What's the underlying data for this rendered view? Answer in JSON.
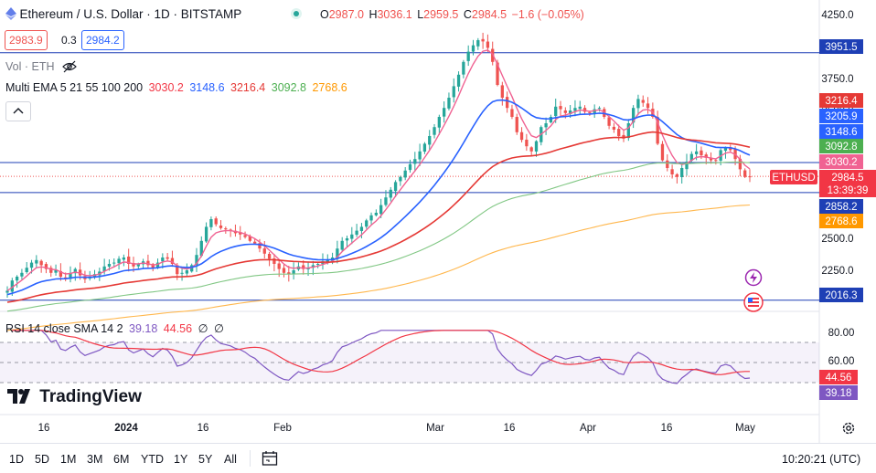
{
  "header": {
    "coin_icon": "ethereum-icon",
    "title": "Ethereum / U.S. Dollar · 1D · BITSTAMP",
    "status_dot_color": "#26a69a",
    "ohlc": {
      "o_label": "O",
      "o": "2987.0",
      "h_label": "H",
      "h": "3036.1",
      "l_label": "L",
      "l": "2959.5",
      "c_label": "C",
      "c": "2984.5",
      "change": "−1.6 (−0.05%)"
    }
  },
  "trade": {
    "sell": "2983.9",
    "spread": "0.3",
    "buy": "2984.2"
  },
  "volume": {
    "label": "Vol · ETH",
    "icon": "eye-off-icon"
  },
  "ema": {
    "label": "Multi EMA 5 21 55 100 200",
    "values": [
      "3030.2",
      "3148.6",
      "3216.4",
      "3092.8",
      "2768.6"
    ],
    "colors": [
      "#f23645",
      "#2962ff",
      "#e53935",
      "#66bb6a",
      "#ff9800"
    ]
  },
  "rsi": {
    "label": "RSI 14 close SMA 14 2",
    "value": "39.18",
    "sma": "44.56",
    "extra1": "∅",
    "extra2": "∅"
  },
  "price_axis": {
    "ticks": [
      "4250.0",
      "4000.0",
      "3750.0",
      "3500.0",
      "3250.0",
      "3000.0",
      "2750.0",
      "2500.0",
      "2250.0"
    ],
    "badges": [
      {
        "text": "3951.5",
        "kind": "hline"
      },
      {
        "text": "3216.4",
        "kind": "ema"
      },
      {
        "text": "3205.9",
        "kind": "ema"
      },
      {
        "text": "3148.6",
        "kind": "ema"
      },
      {
        "text": "3092.8",
        "kind": "ema"
      },
      {
        "text": "3030.2",
        "kind": "ema"
      },
      {
        "symbol": "ETHUSD",
        "text": "2984.5",
        "countdown": "13:39:39"
      },
      {
        "text": "2858.2",
        "kind": "hline"
      },
      {
        "text": "2768.6",
        "kind": "ema"
      },
      {
        "text": "2016.3",
        "kind": "hline"
      }
    ]
  },
  "rsi_axis": {
    "ticks": [
      "80.00",
      "60.00"
    ],
    "badges": [
      "44.56",
      "39.18"
    ]
  },
  "time_axis": [
    "16",
    "2024",
    "16",
    "Feb",
    "Mar",
    "16",
    "Apr",
    "16",
    "May"
  ],
  "hlines": [
    3951.5,
    3092.8,
    2858.2,
    2016.3
  ],
  "bottombar": {
    "timeframes": [
      "1D",
      "5D",
      "1M",
      "3M",
      "6M",
      "YTD",
      "1Y",
      "5Y",
      "All"
    ],
    "calendar_icon": "calendar-range-icon",
    "clock": "10:20:21 (UTC)"
  },
  "logo": "TradingView",
  "colors": {
    "up": "#26a69a",
    "down": "#ef5350",
    "rsi": "#7e57c2",
    "hline": "#1e3fb5"
  },
  "chart_data": {
    "type": "candlestick",
    "title": "Ethereum / U.S. Dollar · 1D · BITSTAMP",
    "x_start": "2023-12-01",
    "x_end": "2024-05-03",
    "ylim": [
      1950,
      4300
    ],
    "closes": [
      2090,
      2170,
      2200,
      2230,
      2270,
      2310,
      2330,
      2290,
      2260,
      2230,
      2250,
      2200,
      2190,
      2230,
      2260,
      2210,
      2180,
      2200,
      2220,
      2240,
      2280,
      2300,
      2310,
      2340,
      2350,
      2300,
      2280,
      2300,
      2320,
      2290,
      2270,
      2310,
      2350,
      2340,
      2300,
      2220,
      2230,
      2250,
      2290,
      2370,
      2480,
      2590,
      2650,
      2610,
      2580,
      2570,
      2560,
      2540,
      2530,
      2510,
      2480,
      2460,
      2420,
      2380,
      2340,
      2300,
      2260,
      2230,
      2220,
      2250,
      2280,
      2260,
      2270,
      2290,
      2300,
      2320,
      2330,
      2350,
      2420,
      2480,
      2500,
      2530,
      2560,
      2590,
      2640,
      2680,
      2700,
      2760,
      2820,
      2880,
      2940,
      2980,
      3030,
      3080,
      3120,
      3180,
      3240,
      3300,
      3370,
      3450,
      3520,
      3600,
      3690,
      3780,
      3880,
      3960,
      4010,
      4050,
      4040,
      3990,
      3880,
      3700,
      3600,
      3520,
      3450,
      3330,
      3270,
      3220,
      3180,
      3260,
      3370,
      3400,
      3450,
      3530,
      3510,
      3480,
      3500,
      3520,
      3530,
      3490,
      3480,
      3510,
      3520,
      3450,
      3380,
      3350,
      3300,
      3280,
      3400,
      3520,
      3590,
      3560,
      3520,
      3450,
      3240,
      3110,
      3050,
      3000,
      2980,
      3050,
      3100,
      3160,
      3180,
      3150,
      3130,
      3110,
      3110,
      3190,
      3210,
      3190,
      3120,
      3040,
      2980,
      2984.5
    ],
    "ema_close": {
      "5": "3030.2",
      "21": "3148.6",
      "55": "3216.4",
      "100": "3092.8",
      "200": "2768.6"
    },
    "rsi_last": 39.18,
    "rsi_sma_last": 44.56,
    "rsi_levels": [
      70,
      50,
      30
    ]
  }
}
